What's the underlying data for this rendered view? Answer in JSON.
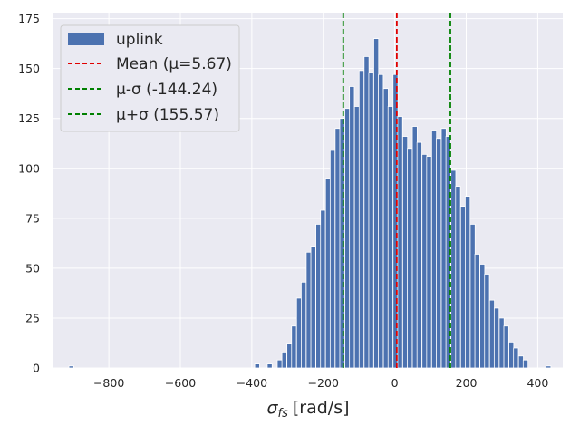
{
  "chart_data": {
    "type": "bar",
    "title": "",
    "xlabel_main": "σ",
    "xlabel_sub": "fs",
    "xlabel_unit": "[rad/s]",
    "ylabel": "",
    "xlim": [
      -955,
      470
    ],
    "ylim": [
      0,
      178
    ],
    "xticks": [
      -800,
      -600,
      -400,
      -200,
      0,
      200,
      400
    ],
    "xtick_labels": [
      "−800",
      "−600",
      "−400",
      "−200",
      "0",
      "200",
      "400"
    ],
    "yticks": [
      0,
      25,
      50,
      75,
      100,
      125,
      150,
      175
    ],
    "ytick_labels": [
      "0",
      "25",
      "50",
      "75",
      "100",
      "125",
      "150",
      "175"
    ],
    "grid": true,
    "legend_position": "top-left",
    "bin_width": 13.5,
    "series": [
      {
        "name": "uplink",
        "color": "#4c72b0",
        "bins": [
          {
            "x": -905,
            "value": 1
          },
          {
            "x": -385,
            "value": 2
          },
          {
            "x": -350,
            "value": 2
          },
          {
            "x": -322,
            "value": 4
          },
          {
            "x": -309,
            "value": 8
          },
          {
            "x": -295,
            "value": 12
          },
          {
            "x": -282,
            "value": 21
          },
          {
            "x": -268,
            "value": 35
          },
          {
            "x": -255,
            "value": 43
          },
          {
            "x": -241,
            "value": 58
          },
          {
            "x": -228,
            "value": 61
          },
          {
            "x": -214,
            "value": 72
          },
          {
            "x": -201,
            "value": 79
          },
          {
            "x": -187,
            "value": 95
          },
          {
            "x": -174,
            "value": 109
          },
          {
            "x": -160,
            "value": 120
          },
          {
            "x": -147,
            "value": 125
          },
          {
            "x": -133,
            "value": 130
          },
          {
            "x": -120,
            "value": 141
          },
          {
            "x": -106,
            "value": 131
          },
          {
            "x": -93,
            "value": 149
          },
          {
            "x": -79,
            "value": 156
          },
          {
            "x": -66,
            "value": 148
          },
          {
            "x": -52,
            "value": 165
          },
          {
            "x": -39,
            "value": 147
          },
          {
            "x": -25,
            "value": 140
          },
          {
            "x": -12,
            "value": 131
          },
          {
            "x": 2,
            "value": 147
          },
          {
            "x": 15,
            "value": 126
          },
          {
            "x": 29,
            "value": 116
          },
          {
            "x": 42,
            "value": 110
          },
          {
            "x": 56,
            "value": 121
          },
          {
            "x": 69,
            "value": 113
          },
          {
            "x": 83,
            "value": 107
          },
          {
            "x": 96,
            "value": 106
          },
          {
            "x": 110,
            "value": 119
          },
          {
            "x": 123,
            "value": 115
          },
          {
            "x": 137,
            "value": 120
          },
          {
            "x": 150,
            "value": 116
          },
          {
            "x": 164,
            "value": 99
          },
          {
            "x": 177,
            "value": 91
          },
          {
            "x": 191,
            "value": 81
          },
          {
            "x": 204,
            "value": 86
          },
          {
            "x": 218,
            "value": 72
          },
          {
            "x": 231,
            "value": 57
          },
          {
            "x": 245,
            "value": 52
          },
          {
            "x": 258,
            "value": 47
          },
          {
            "x": 272,
            "value": 34
          },
          {
            "x": 285,
            "value": 30
          },
          {
            "x": 299,
            "value": 25
          },
          {
            "x": 312,
            "value": 21
          },
          {
            "x": 326,
            "value": 13
          },
          {
            "x": 339,
            "value": 10
          },
          {
            "x": 353,
            "value": 6
          },
          {
            "x": 366,
            "value": 4
          },
          {
            "x": 430,
            "value": 1
          }
        ]
      }
    ],
    "vlines": [
      {
        "name": "Mean (μ=5.67)",
        "x": 5.67,
        "color": "#e00000"
      },
      {
        "name": "μ-σ (-144.24)",
        "x": -144.24,
        "color": "#008000"
      },
      {
        "name": "μ+σ (155.57)",
        "x": 155.57,
        "color": "#008000"
      }
    ]
  }
}
